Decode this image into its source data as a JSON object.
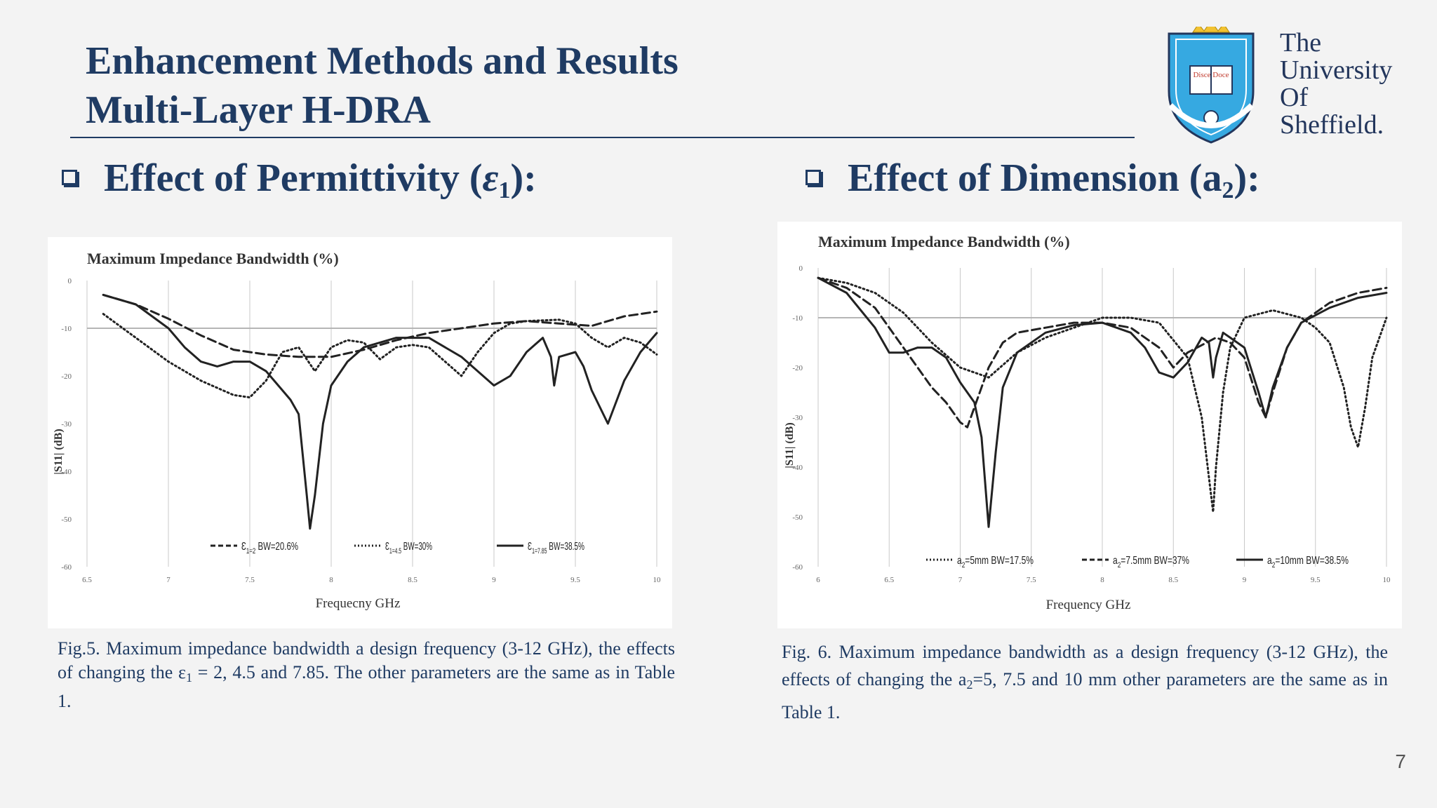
{
  "title": {
    "line1": "Enhancement Methods and Results",
    "line2": "Multi-Layer H-DRA"
  },
  "logo": {
    "line1": "The",
    "line2": "University",
    "line3": "Of",
    "line4": "Sheffield.",
    "shield_motto": "Disce Doce",
    "colors": {
      "shield": "#36a9e1",
      "crown": "#f2c230",
      "dark": "#23365c"
    }
  },
  "sections": {
    "left": {
      "prefix": "Effect of Permittivity (",
      "symbol": "ε",
      "subscript": "1",
      "suffix": "):"
    },
    "right": {
      "prefix": "Effect of Dimension (",
      "symbol": "a",
      "subscript": "2",
      "suffix": "):"
    }
  },
  "captions": {
    "left": {
      "part1": "Fig.5. Maximum impedance bandwidth a design frequency (3-12 GHz), the effects of changing the ε",
      "sub": "1",
      "part2": " = 2, 4.5 and 7.85. The other parameters are the same as in Table 1."
    },
    "right": {
      "part1": "Fig. 6.  Maximum impedance bandwidth as a design frequency (3-12 GHz), the effects of changing the a",
      "sub": "2",
      "part2": "=5, 7.5 and 10 mm other parameters are the same as in Table 1."
    }
  },
  "page_number": "7",
  "colors": {
    "accent": "#1f3b63",
    "curve": "#222222",
    "grid": "#c8c8c8",
    "refline": "#b5b5b5"
  },
  "chart_data": [
    {
      "type": "line",
      "title": "Maximum Impedance Bandwidth (%)",
      "xlabel": "Frequecny GHz",
      "ylabel": "|S11| (dB)",
      "xlim": [
        6.5,
        10
      ],
      "ylim": [
        -60,
        0
      ],
      "xticks": [
        "6.5",
        "7",
        "7.5",
        "8",
        "8.5",
        "9",
        "9.5",
        "10"
      ],
      "yticks": [
        "0",
        "-10",
        "-20",
        "-30",
        "-40",
        "-50",
        "-60"
      ],
      "grid": true,
      "reference_line": -10,
      "legend_position": "bottom",
      "series": [
        {
          "name": "ε1=2 BW=20.6%",
          "label_base": "Ɛ",
          "label_sub": "1=2",
          "label_rest": " BW=20.6%",
          "style": "dashed",
          "x": [
            6.6,
            6.8,
            7.0,
            7.2,
            7.4,
            7.6,
            7.8,
            8.0,
            8.2,
            8.4,
            8.6,
            8.8,
            9.0,
            9.2,
            9.4,
            9.6,
            9.8,
            10.0
          ],
          "y": [
            -3,
            -5,
            -8,
            -11.5,
            -14.5,
            -15.5,
            -16,
            -16,
            -14.5,
            -12.5,
            -11,
            -10,
            -9,
            -8.5,
            -9,
            -9.5,
            -7.5,
            -6.5
          ]
        },
        {
          "name": "ε1=4.5 BW=30%",
          "label_base": "Ɛ",
          "label_sub": "1=4.5",
          "label_rest": " BW=30%",
          "style": "dotted",
          "x": [
            6.6,
            6.8,
            7.0,
            7.2,
            7.4,
            7.5,
            7.6,
            7.7,
            7.8,
            7.9,
            8.0,
            8.1,
            8.2,
            8.3,
            8.4,
            8.5,
            8.6,
            8.7,
            8.8,
            8.9,
            9.0,
            9.1,
            9.2,
            9.4,
            9.5,
            9.6,
            9.7,
            9.8,
            9.9,
            10.0
          ],
          "y": [
            -7,
            -12,
            -17,
            -21,
            -24,
            -24.5,
            -21,
            -15,
            -14,
            -19,
            -14,
            -12.5,
            -13,
            -16.5,
            -14,
            -13.5,
            -14,
            -17,
            -20,
            -15,
            -11,
            -9,
            -8.5,
            -8.2,
            -9,
            -12,
            -14,
            -12,
            -13,
            -15.5
          ]
        },
        {
          "name": "ε1=7.85 BW=38.5%",
          "label_base": "Ɛ",
          "label_sub": "1=7.85",
          "label_rest": " BW=38.5%",
          "style": "solid",
          "x": [
            6.6,
            6.8,
            7.0,
            7.1,
            7.2,
            7.3,
            7.4,
            7.5,
            7.6,
            7.7,
            7.75,
            7.8,
            7.85,
            7.87,
            7.9,
            7.95,
            8.0,
            8.1,
            8.2,
            8.4,
            8.6,
            8.8,
            9.0,
            9.1,
            9.2,
            9.3,
            9.35,
            9.37,
            9.4,
            9.5,
            9.55,
            9.6,
            9.7,
            9.8,
            9.9,
            10.0
          ],
          "y": [
            -3,
            -5,
            -10,
            -14,
            -17,
            -18,
            -17,
            -17,
            -19,
            -23,
            -25,
            -28,
            -45,
            -52,
            -45,
            -30,
            -22,
            -17,
            -14,
            -12,
            -12,
            -16,
            -22,
            -20,
            -15,
            -12,
            -16,
            -22,
            -16,
            -15,
            -18,
            -23,
            -30,
            -21,
            -15,
            -11
          ]
        }
      ]
    },
    {
      "type": "line",
      "title": "Maximum Impedance Bandwidth (%)",
      "xlabel": "Frequency GHz",
      "ylabel": "|S11| (dB)",
      "xlim": [
        6,
        10
      ],
      "ylim": [
        -60,
        0
      ],
      "xticks": [
        "6",
        "6.5",
        "7",
        "7.5",
        "8",
        "8.5",
        "9",
        "9.5",
        "10"
      ],
      "yticks": [
        "0",
        "-10",
        "-20",
        "-30",
        "-40",
        "-50",
        "-60"
      ],
      "grid": true,
      "reference_line": -10,
      "legend_position": "bottom",
      "series": [
        {
          "name": "a2=5mm BW=17.5%",
          "label_base": "a",
          "label_sub": "2",
          "label_rest": "=5mm BW=17.5%",
          "style": "dotted",
          "x": [
            6.0,
            6.2,
            6.4,
            6.6,
            6.8,
            7.0,
            7.2,
            7.4,
            7.6,
            7.8,
            8.0,
            8.2,
            8.4,
            8.6,
            8.7,
            8.75,
            8.78,
            8.8,
            8.85,
            8.9,
            9.0,
            9.2,
            9.4,
            9.5,
            9.6,
            9.7,
            9.75,
            9.8,
            9.85,
            9.9,
            10.0
          ],
          "y": [
            -2,
            -3,
            -5,
            -9,
            -15,
            -20,
            -22,
            -17,
            -14,
            -12,
            -10,
            -10,
            -11,
            -18,
            -30,
            -42,
            -49,
            -40,
            -25,
            -16,
            -10,
            -8.5,
            -10,
            -12,
            -15,
            -24,
            -32,
            -36,
            -28,
            -18,
            -10
          ]
        },
        {
          "name": "a2=7.5mm BW=37%",
          "label_base": "a",
          "label_sub": "2",
          "label_rest": "=7.5mm BW=37%",
          "style": "dashed",
          "x": [
            6.0,
            6.2,
            6.4,
            6.6,
            6.8,
            6.9,
            7.0,
            7.05,
            7.1,
            7.2,
            7.3,
            7.4,
            7.6,
            7.8,
            8.0,
            8.2,
            8.4,
            8.5,
            8.6,
            8.8,
            8.9,
            9.0,
            9.1,
            9.15,
            9.2,
            9.3,
            9.4,
            9.6,
            9.8,
            10.0
          ],
          "y": [
            -2,
            -4,
            -8,
            -16,
            -24,
            -27,
            -31,
            -32,
            -28,
            -20,
            -15,
            -13,
            -12,
            -11,
            -11,
            -12,
            -16,
            -20,
            -17,
            -14,
            -15,
            -18,
            -27,
            -30,
            -25,
            -16,
            -11,
            -7,
            -5,
            -4
          ]
        },
        {
          "name": "a2=10mm BW=38.5%",
          "label_base": "a",
          "label_sub": "2",
          "label_rest": "=10mm BW=38.5%",
          "style": "solid",
          "x": [
            6.0,
            6.2,
            6.4,
            6.5,
            6.6,
            6.7,
            6.8,
            6.9,
            7.0,
            7.1,
            7.15,
            7.2,
            7.25,
            7.3,
            7.4,
            7.6,
            7.8,
            8.0,
            8.2,
            8.3,
            8.4,
            8.5,
            8.6,
            8.7,
            8.75,
            8.78,
            8.8,
            8.85,
            8.9,
            9.0,
            9.1,
            9.15,
            9.2,
            9.3,
            9.4,
            9.6,
            9.8,
            10.0
          ],
          "y": [
            -2,
            -5,
            -12,
            -17,
            -17,
            -16,
            -16,
            -18,
            -23,
            -27,
            -34,
            -52,
            -37,
            -24,
            -17,
            -13,
            -11.5,
            -11,
            -13,
            -16,
            -21,
            -22,
            -19,
            -14,
            -15,
            -22,
            -18,
            -13,
            -14,
            -16,
            -25,
            -30,
            -24,
            -16,
            -11,
            -8,
            -6,
            -5
          ]
        }
      ]
    }
  ]
}
